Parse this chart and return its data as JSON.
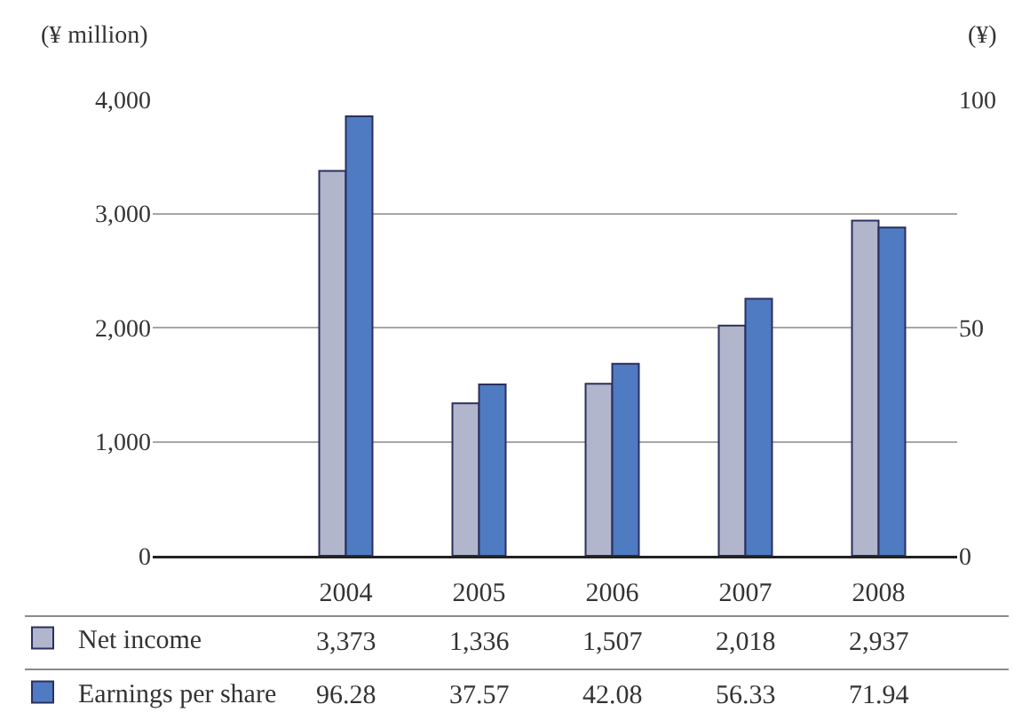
{
  "chart_data": {
    "type": "bar",
    "ylabel": "(¥ million)",
    "y2label": "(¥)",
    "categories": [
      "2004",
      "2005",
      "2006",
      "2007",
      "2008"
    ],
    "series": [
      {
        "name": "Net income",
        "color": "#b2b6cc",
        "values": [
          3373,
          1336,
          1507,
          2018,
          2937
        ],
        "value_labels": [
          "3,373",
          "1,336",
          "1,507",
          "2,018",
          "2,937"
        ]
      },
      {
        "name": "Earnings per share",
        "color": "#4f7bc2",
        "axis": "y2",
        "values": [
          96.28,
          37.57,
          42.08,
          56.33,
          71.94
        ],
        "value_labels": [
          "96.28",
          "37.57",
          "42.08",
          "56.33",
          "71.94"
        ]
      }
    ],
    "ylim": [
      0,
      4000
    ],
    "yticks": [
      0,
      {
        "value": 1000,
        "label": "1,000"
      },
      {
        "value": 2000,
        "label": "2,000"
      },
      {
        "value": 3000,
        "label": "3,000"
      },
      {
        "value": 4000,
        "label": "4,000"
      }
    ],
    "y2lim": [
      0,
      100
    ],
    "y2ticks": [
      0,
      50,
      100
    ],
    "grid": "y",
    "legend": "bottom left"
  }
}
